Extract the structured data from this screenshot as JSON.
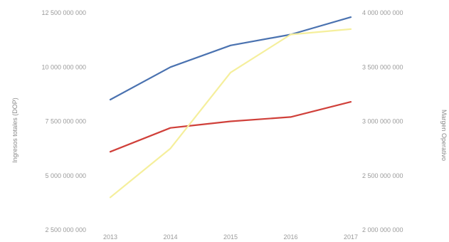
{
  "chart_data": {
    "type": "line",
    "title": "",
    "x": [
      "2013",
      "2014",
      "2015",
      "2016",
      "2017"
    ],
    "left_axis": {
      "label": "Ingresos totales (DOP)",
      "ticks": [
        2500000000,
        5000000000,
        7500000000,
        10000000000,
        12500000000
      ],
      "tick_labels": [
        "2 500 000 000",
        "5 000 000 000",
        "7 500 000 000",
        "10 000 000 000",
        "12 500 000 000"
      ],
      "ylim": [
        2500000000,
        12500000000
      ]
    },
    "right_axis": {
      "label": "Margen Operativo",
      "ticks": [
        2000000000,
        2500000000,
        3000000000,
        3500000000,
        4000000000
      ],
      "tick_labels": [
        "2 000 000 000",
        "2 500 000 000",
        "3 000 000 000",
        "3 500 000 000",
        "4 000 000 000"
      ],
      "ylim": [
        2000000000,
        4000000000
      ]
    },
    "series": [
      {
        "axis": "left",
        "color": "#4a72b0",
        "values": [
          8500000000,
          10000000000,
          11000000000,
          11500000000,
          12300000000
        ]
      },
      {
        "axis": "left",
        "color": "#d0403a",
        "values": [
          6100000000,
          7200000000,
          7500000000,
          7700000000,
          8400000000
        ]
      },
      {
        "axis": "right",
        "color": "#f5ef9c",
        "values": [
          2300000000,
          2750000000,
          3450000000,
          3800000000,
          3850000000
        ]
      }
    ],
    "grid": false,
    "legend": "none"
  }
}
